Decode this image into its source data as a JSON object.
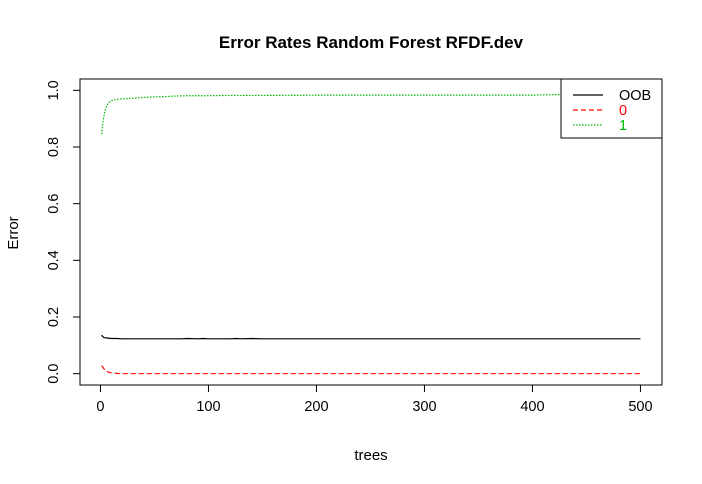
{
  "chart_data": {
    "type": "line",
    "title": "Error Rates Random Forest RFDF.dev",
    "xlabel": "trees",
    "ylabel": "Error",
    "xlim": [
      1,
      500
    ],
    "ylim": [
      0,
      1
    ],
    "x_ticks": [
      0,
      100,
      200,
      300,
      400,
      500
    ],
    "x_tick_labels": [
      "0",
      "100",
      "200",
      "300",
      "400",
      "500"
    ],
    "y_ticks": [
      0,
      0.2,
      0.4,
      0.6,
      0.8,
      1
    ],
    "y_tick_labels": [
      "0.0",
      "0.2",
      "0.4",
      "0.6",
      "0.8",
      "1.0"
    ],
    "legend_position": "top-right",
    "series": [
      {
        "name": "OOB",
        "color": "#000000",
        "dash": "solid",
        "x": [
          1,
          2,
          3,
          4,
          6,
          8,
          10,
          15,
          20,
          30,
          50,
          75,
          80,
          90,
          95,
          100,
          120,
          125,
          130,
          140,
          150,
          160,
          200,
          300,
          400,
          500
        ],
        "y": [
          0.136,
          0.131,
          0.128,
          0.127,
          0.126,
          0.125,
          0.124,
          0.124,
          0.123,
          0.123,
          0.123,
          0.123,
          0.124,
          0.123,
          0.124,
          0.123,
          0.123,
          0.124,
          0.123,
          0.124,
          0.123,
          0.123,
          0.123,
          0.123,
          0.123,
          0.123
        ]
      },
      {
        "name": "0",
        "color": "#ff0000",
        "dash": "dashed",
        "x": [
          1,
          2,
          3,
          4,
          5,
          7,
          10,
          15,
          20,
          30,
          50,
          100,
          200,
          300,
          400,
          500
        ],
        "y": [
          0.028,
          0.024,
          0.018,
          0.014,
          0.01,
          0.006,
          0.003,
          0.001,
          0.0,
          0.0,
          0.0,
          0.0,
          0.0,
          0.0,
          0.0,
          0.0
        ]
      },
      {
        "name": "1",
        "color": "#00bb00",
        "dash": "dotted",
        "x": [
          1,
          2,
          3,
          4,
          5,
          6,
          8,
          10,
          12,
          15,
          20,
          30,
          40,
          50,
          60,
          70,
          80,
          100,
          120,
          150,
          200,
          250,
          300,
          350,
          400,
          420,
          450,
          500
        ],
        "y": [
          0.845,
          0.88,
          0.905,
          0.925,
          0.938,
          0.948,
          0.958,
          0.963,
          0.966,
          0.968,
          0.97,
          0.972,
          0.975,
          0.977,
          0.978,
          0.98,
          0.981,
          0.981,
          0.982,
          0.982,
          0.983,
          0.983,
          0.983,
          0.983,
          0.983,
          0.985,
          0.983,
          0.983
        ]
      }
    ]
  }
}
